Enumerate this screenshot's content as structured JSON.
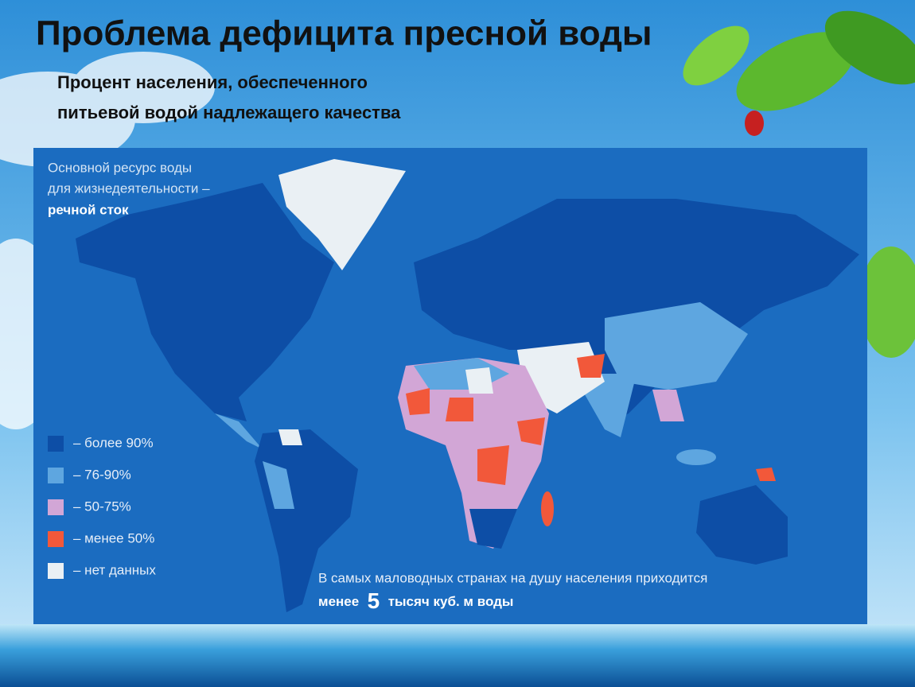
{
  "header": {
    "title": "Проблема дефицита пресной воды",
    "subtitle": [
      "Процент населения, обеспеченного",
      "питьевой водой надлежащего качества"
    ]
  },
  "map": {
    "caption": [
      "Основной ресурс воды",
      "для жизнедеятельности –",
      "речной сток"
    ],
    "legend": [
      {
        "label": "– более 90%",
        "color": "#0d4ea6"
      },
      {
        "label": "– 76-90%",
        "color": "#5ea6e0"
      },
      {
        "label": "– 50-75%",
        "color": "#d2a6d6"
      },
      {
        "label": "– менее 50%",
        "color": "#f2583a"
      },
      {
        "label": "– нет данных",
        "color": "#eaf0f4"
      }
    ],
    "note": {
      "line1": "В самых маловодных странах на душу населения приходится",
      "line2": [
        "менее",
        "5",
        "тысяч куб. м воды"
      ]
    }
  }
}
